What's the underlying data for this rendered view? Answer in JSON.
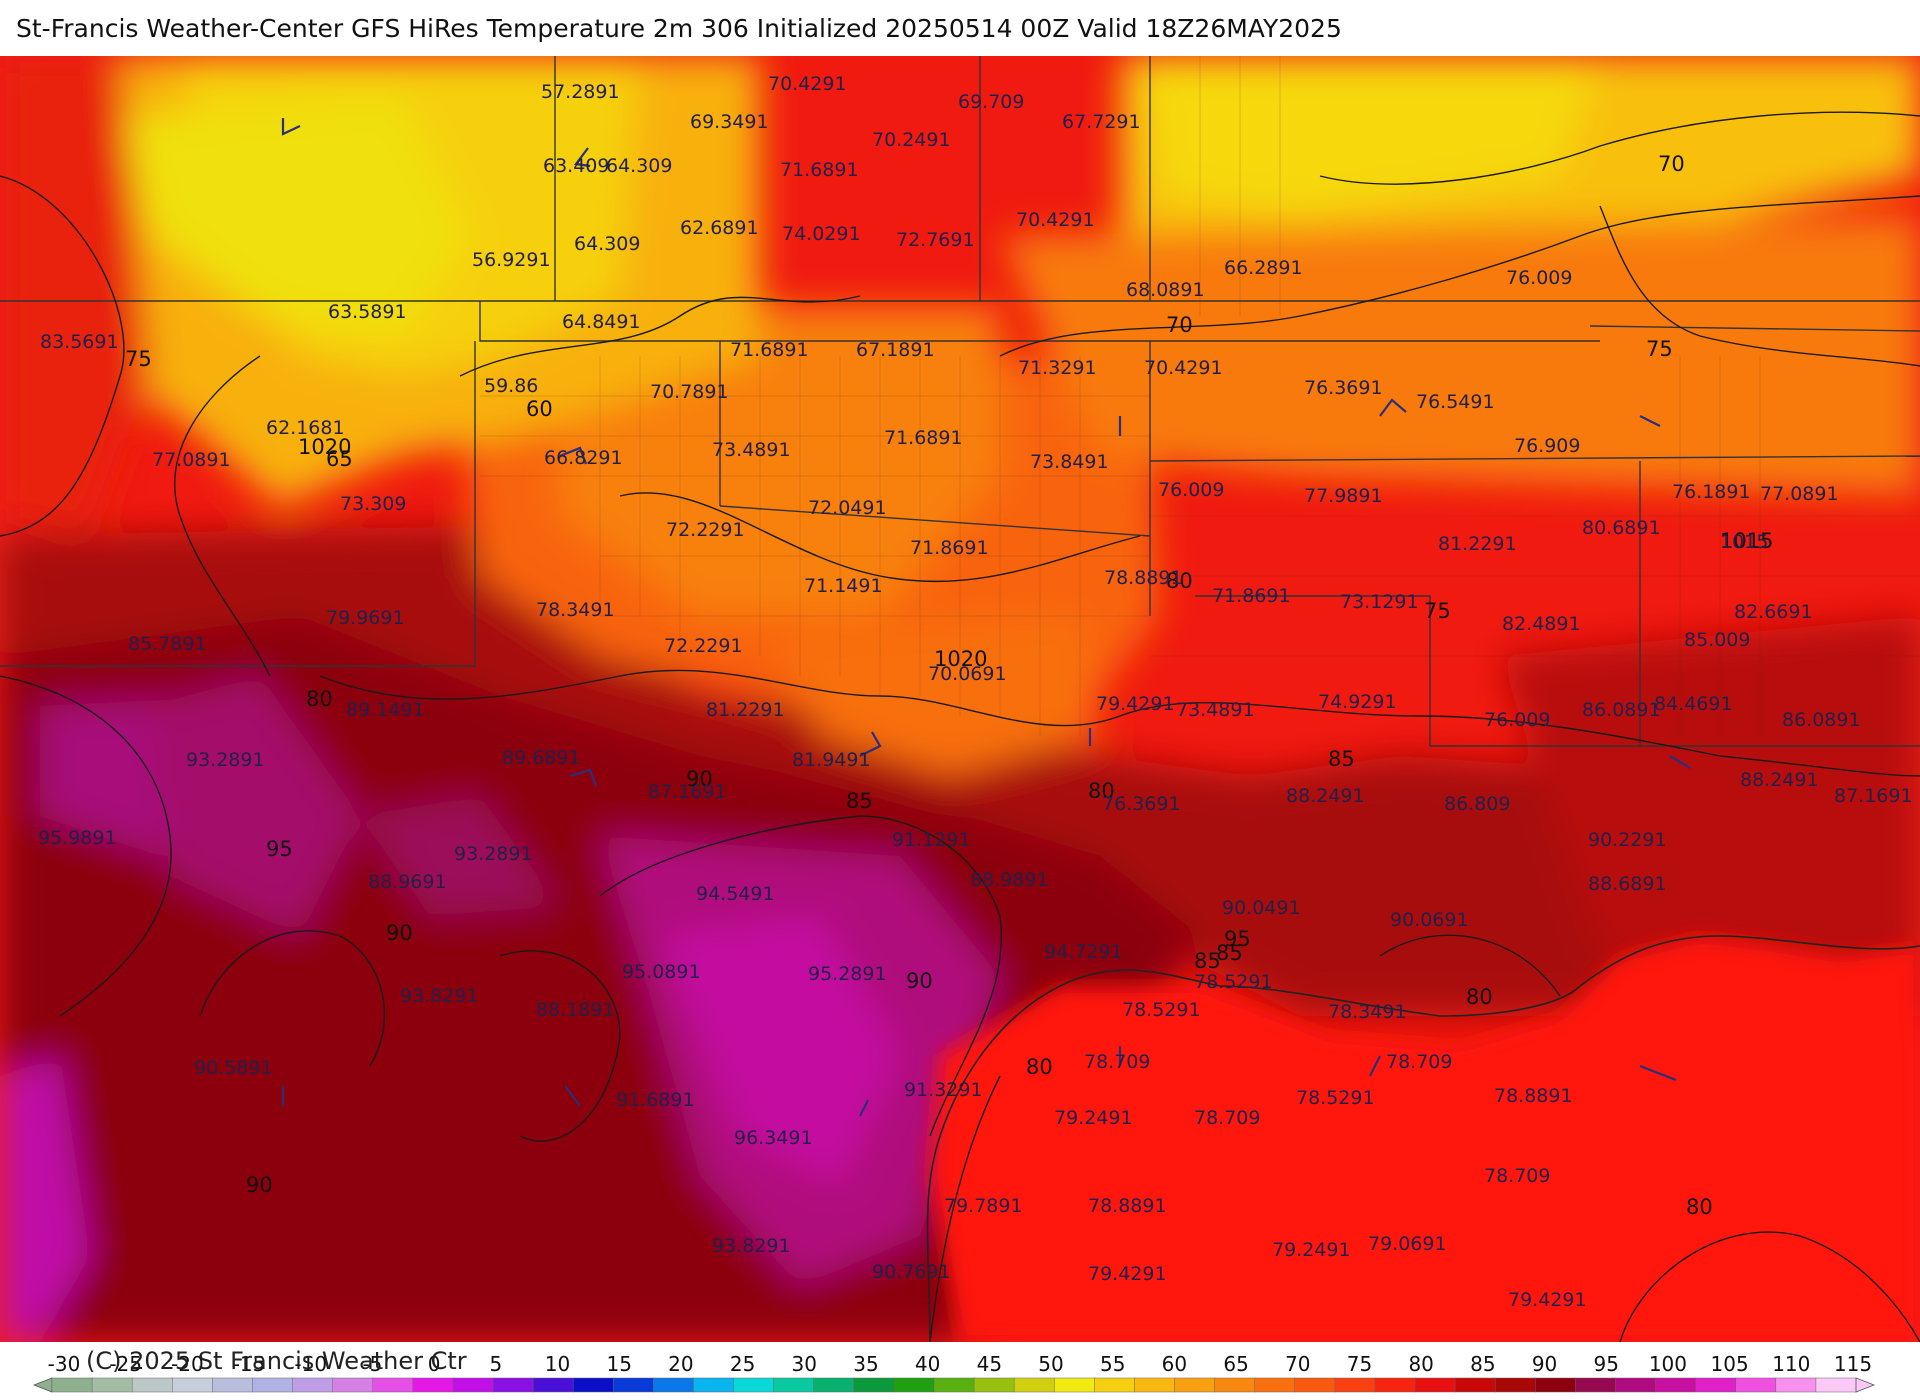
{
  "header": {
    "title": "St-Francis Weather-Center GFS HiRes Temperature 2m  306 Initialized 20250514 00Z Valid 18Z26MAY2025"
  },
  "footer": {
    "copyright": "(C) 2025 St Francis Weather Ctr"
  },
  "colorbar": {
    "ticks": [
      "-30",
      "-25",
      "-20",
      "-15",
      "-10",
      "-5",
      "0",
      "5",
      "10",
      "15",
      "20",
      "25",
      "30",
      "35",
      "40",
      "45",
      "50",
      "55",
      "60",
      "65",
      "70",
      "75",
      "80",
      "85",
      "90",
      "95",
      "100",
      "105",
      "110",
      "115"
    ],
    "colors": [
      "#8fb08f",
      "#a4bca4",
      "#bcc8c8",
      "#c8cfdc",
      "#b8bedc",
      "#b0b2e4",
      "#c09ee6",
      "#d680e6",
      "#e650e6",
      "#e618e6",
      "#c010e6",
      "#8a10e6",
      "#4a10d8",
      "#0a10c8",
      "#0a3ad8",
      "#0a78e8",
      "#0ab4ee",
      "#0ad8d8",
      "#0ac8a0",
      "#0ab070",
      "#0a9a3c",
      "#1ea010",
      "#5ab010",
      "#98c010",
      "#d0d010",
      "#f0ea10",
      "#f6d010",
      "#f8b810",
      "#f8a010",
      "#f88810",
      "#f87010",
      "#f85a10",
      "#f84010",
      "#f82410",
      "#e81010",
      "#c80808",
      "#a80808",
      "#8c0010",
      "#960850",
      "#b00a80",
      "#c810a0",
      "#e020c8",
      "#f050e0",
      "#f890ee",
      "#fcc8f8"
    ]
  },
  "map": {
    "contour_labels": [
      "70",
      "75",
      "60",
      "65",
      "1020",
      "80",
      "85",
      "90",
      "95",
      "80",
      "1015",
      "70",
      "75",
      "80",
      "85",
      "90",
      "95",
      "85",
      "80",
      "90",
      "80",
      "90",
      "80",
      "1020",
      "75",
      "85"
    ],
    "station_values": [
      "57.2891",
      "70.4291",
      "69.3491",
      "69.709",
      "67.7291",
      "70.2491",
      "63.409",
      "64.309",
      "71.6891",
      "56.9291",
      "64.309",
      "62.6891",
      "74.0291",
      "72.7691",
      "70.4291",
      "66.2891",
      "68.0891",
      "76.009",
      "63.5891",
      "64.8491",
      "83.5691",
      "71.6891",
      "67.1891",
      "71.3291",
      "70.4291",
      "59.86",
      "70.7891",
      "76.3691",
      "76.5491",
      "62.1681",
      "73.4891",
      "71.6891",
      "73.8491",
      "77.0891",
      "66.8291",
      "76.909",
      "73.309",
      "72.2291",
      "72.0491",
      "76.009",
      "77.9891",
      "76.1891",
      "77.0891",
      "80.6891",
      "81.2291",
      "71.8691",
      "1015",
      "78.3491",
      "71.1491",
      "78.8891",
      "71.8691",
      "73.1291",
      "82.4891",
      "79.9691",
      "82.6691",
      "85.009",
      "72.2291",
      "85.7891",
      "70.0691",
      "79.4291",
      "73.4891",
      "74.9291",
      "76.009",
      "86.0891",
      "84.4691",
      "86.0891",
      "81.2291",
      "89.1491",
      "93.2891",
      "89.6891",
      "81.9491",
      "87.1691",
      "76.3691",
      "88.2491",
      "86.809",
      "88.2491",
      "87.1691",
      "95.9891",
      "93.2891",
      "91.1291",
      "90.2291",
      "90.0491",
      "88.9891",
      "94.5491",
      "88.9691",
      "88.6891",
      "90.0691",
      "95.0891",
      "95.2891",
      "94.7291",
      "78.5291",
      "93.8291",
      "88.1891",
      "78.5291",
      "78.3491",
      "90.5891",
      "78.709",
      "78.709",
      "91.6891",
      "91.3291",
      "78.5291",
      "78.8891",
      "79.2491",
      "78.709",
      "96.3491",
      "78.709",
      "79.7891",
      "78.8891",
      "93.8291",
      "79.0691",
      "79.2491",
      "90.7691",
      "79.4291",
      "79.4291"
    ]
  }
}
